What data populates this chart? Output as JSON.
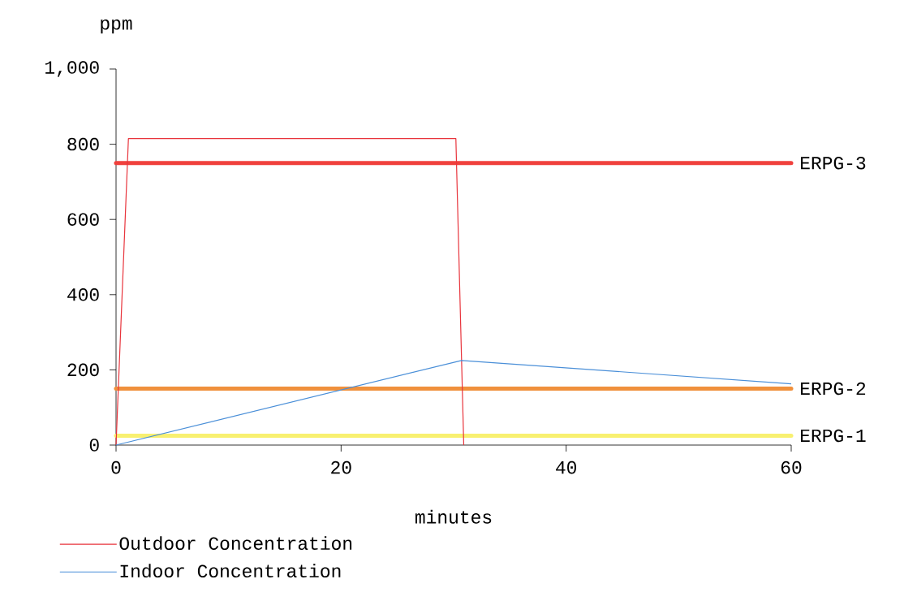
{
  "chart_data": {
    "type": "line",
    "xlabel": "minutes",
    "ylabel": "ppm",
    "xlim": [
      0,
      60
    ],
    "xticks": [
      0,
      20,
      40,
      60
    ],
    "ylim": [
      0,
      1000
    ],
    "yticks": [
      0,
      200,
      400,
      600,
      800,
      {
        "value": 1000,
        "label": "1,000"
      }
    ],
    "series": [
      {
        "name": "Outdoor Concentration",
        "color": "#e8343c",
        "x": [
          0,
          1.1,
          30.2,
          30.9
        ],
        "values": [
          0,
          815,
          815,
          0
        ]
      },
      {
        "name": "Indoor Concentration",
        "color": "#4a8fd8",
        "x": [
          0,
          30.7,
          60
        ],
        "values": [
          0,
          225,
          163
        ]
      }
    ],
    "ref_lines": [
      {
        "axis": "y",
        "value": 750,
        "label": "ERPG-3",
        "color": "#f0403c"
      },
      {
        "axis": "y",
        "value": 150,
        "label": "ERPG-2",
        "color": "#f0903c"
      },
      {
        "axis": "y",
        "value": 25,
        "label": "ERPG-1",
        "color": "#f8f070"
      }
    ],
    "legend": "bottom",
    "grid": false,
    "marker": "none",
    "line_style": "solid"
  }
}
